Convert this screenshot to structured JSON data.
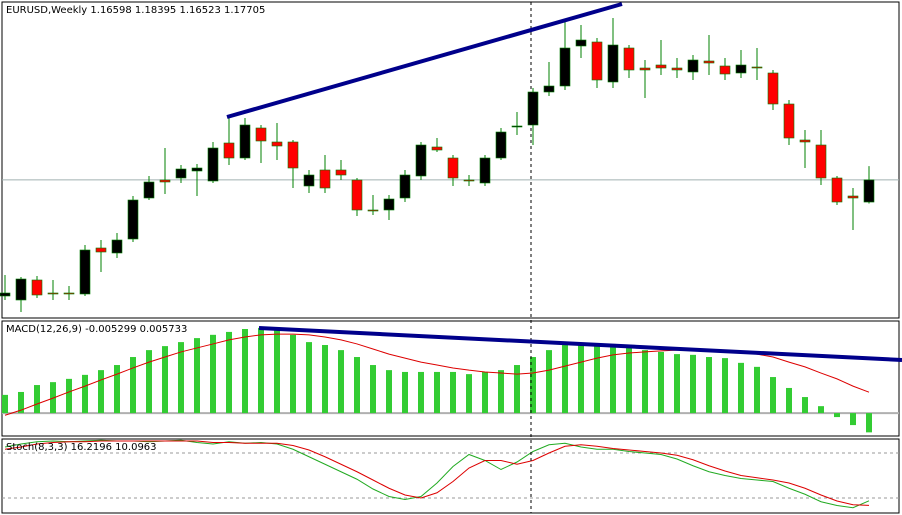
{
  "chart_data": [
    {
      "type": "candlestick",
      "title": "EURUSD,Weekly  1.16598 1.18395 1.16523 1.17705",
      "open": [
        1.119,
        1.117,
        1.127,
        1.1205,
        1.1205,
        1.12,
        1.143,
        1.1405,
        1.1475,
        1.168,
        1.177,
        1.178,
        1.1815,
        1.1765,
        1.1955,
        1.188,
        1.203,
        1.196,
        1.196,
        1.174,
        1.182,
        1.182,
        1.177,
        1.162,
        1.162,
        1.168,
        1.179,
        1.1935,
        1.188,
        1.177,
        1.1755,
        1.188,
        1.2035,
        1.2045,
        1.221,
        1.224,
        1.244,
        1.246,
        1.226,
        1.243,
        1.233,
        1.2345,
        1.233,
        1.231,
        1.2365,
        1.234,
        1.2305,
        1.2335,
        1.2305,
        1.215,
        1.197,
        1.1945,
        1.178,
        1.169,
        1.16598
      ],
      "high": [
        1.1295,
        1.1285,
        1.129,
        1.127,
        1.124,
        1.1445,
        1.147,
        1.1505,
        1.169,
        1.179,
        1.193,
        1.1845,
        1.185,
        1.196,
        1.208,
        1.208,
        1.2045,
        1.2055,
        1.197,
        1.182,
        1.1895,
        1.187,
        1.178,
        1.1695,
        1.1695,
        1.182,
        1.196,
        1.198,
        1.1895,
        1.1795,
        1.1895,
        1.203,
        1.211,
        1.223,
        1.236,
        1.257,
        1.2545,
        1.248,
        1.258,
        1.2445,
        1.237,
        1.247,
        1.238,
        1.2395,
        1.2495,
        1.238,
        1.242,
        1.243,
        1.232,
        1.217,
        1.202,
        1.202,
        1.179,
        1.173,
        1.18395
      ],
      "low": [
        1.117,
        1.111,
        1.118,
        1.117,
        1.117,
        1.119,
        1.131,
        1.138,
        1.146,
        1.167,
        1.17,
        1.1755,
        1.169,
        1.1755,
        1.1845,
        1.187,
        1.1855,
        1.187,
        1.173,
        1.1705,
        1.1705,
        1.177,
        1.159,
        1.1595,
        1.157,
        1.166,
        1.177,
        1.191,
        1.174,
        1.174,
        1.174,
        1.187,
        1.1995,
        1.1945,
        1.219,
        1.222,
        1.238,
        1.223,
        1.223,
        1.228,
        1.218,
        1.2295,
        1.228,
        1.227,
        1.2295,
        1.227,
        1.228,
        1.227,
        1.212,
        1.1945,
        1.183,
        1.1745,
        1.1645,
        1.152,
        1.16523
      ],
      "close": [
        1.1205,
        1.1275,
        1.1195,
        1.12,
        1.12,
        1.142,
        1.141,
        1.147,
        1.167,
        1.176,
        1.176,
        1.1825,
        1.183,
        1.193,
        1.188,
        1.2045,
        1.1965,
        1.194,
        1.183,
        1.1795,
        1.173,
        1.1795,
        1.162,
        1.1615,
        1.1675,
        1.1795,
        1.1945,
        1.192,
        1.178,
        1.1765,
        1.188,
        1.201,
        1.204,
        1.221,
        1.224,
        1.243,
        1.247,
        1.227,
        1.2445,
        1.232,
        1.232,
        1.233,
        1.232,
        1.237,
        1.2355,
        1.23,
        1.2345,
        1.233,
        1.215,
        1.198,
        1.196,
        1.178,
        1.166,
        1.168,
        1.17705
      ],
      "up_color": "#000000",
      "down_color": "#ff0000",
      "wick_color": "#008000",
      "ylim": [
        1.108,
        1.266
      ]
    },
    {
      "type": "macd",
      "title": "MACD(12,26,9) -0.005299 0.005733",
      "series": [
        {
          "color": "#33cc33",
          "values": [
            0.005,
            0.0058,
            0.0077,
            0.0085,
            0.0094,
            0.0105,
            0.0118,
            0.0132,
            0.0154,
            0.0173,
            0.0184,
            0.0195,
            0.0206,
            0.0215,
            0.0223,
            0.0231,
            0.0234,
            0.0228,
            0.0215,
            0.0195,
            0.0187,
            0.0173,
            0.0154,
            0.0132,
            0.0118,
            0.0113,
            0.0113,
            0.0113,
            0.0113,
            0.0107,
            0.0113,
            0.0118,
            0.0132,
            0.0154,
            0.0173,
            0.0187,
            0.019,
            0.0187,
            0.019,
            0.0182,
            0.0173,
            0.0168,
            0.0162,
            0.016,
            0.0154,
            0.0151,
            0.0138,
            0.0127,
            0.0099,
            0.0069,
            0.0044,
            0.0019,
            -0.0011,
            -0.0033,
            -0.005299
          ]
        },
        {
          "color": "#dd0000",
          "values": [
            -0.0006,
            0.0008,
            0.0025,
            0.0041,
            0.0058,
            0.0074,
            0.0091,
            0.0107,
            0.0124,
            0.014,
            0.0154,
            0.0168,
            0.0179,
            0.019,
            0.0201,
            0.0209,
            0.0215,
            0.0217,
            0.0217,
            0.0215,
            0.0209,
            0.0201,
            0.019,
            0.0176,
            0.0162,
            0.0151,
            0.014,
            0.0132,
            0.0124,
            0.0118,
            0.0113,
            0.011,
            0.0107,
            0.011,
            0.0118,
            0.0129,
            0.014,
            0.0151,
            0.016,
            0.0165,
            0.0168,
            0.0171,
            0.0173,
            0.0173,
            0.0173,
            0.0171,
            0.0168,
            0.0162,
            0.0154,
            0.014,
            0.0127,
            0.011,
            0.0094,
            0.0074,
            0.005733
          ]
        }
      ],
      "ylim": [
        -0.0063,
        0.0253
      ]
    },
    {
      "type": "stochastic",
      "title": "Stoch(8,3,3) 16.2196 10.0963",
      "series": [
        {
          "color": "#22aa22",
          "values": [
            88,
            92,
            95,
            96,
            95,
            96,
            97,
            96,
            96,
            95,
            96,
            97,
            94,
            92,
            95,
            93,
            94,
            92,
            85,
            75,
            65,
            55,
            45,
            32,
            22,
            18,
            22,
            40,
            62,
            78,
            70,
            58,
            68,
            82,
            91,
            93,
            88,
            85,
            85,
            82,
            80,
            78,
            72,
            63,
            55,
            50,
            46,
            44,
            42,
            33,
            25,
            15,
            10,
            7,
            16.2196
          ]
        },
        {
          "color": "#dd0000",
          "values": [
            85,
            88,
            92,
            94,
            95,
            95,
            96,
            96,
            96,
            96,
            96,
            96,
            96,
            94,
            94,
            93,
            93,
            93,
            90,
            84,
            75,
            65,
            55,
            44,
            33,
            24,
            20,
            27,
            42,
            60,
            70,
            70,
            65,
            70,
            80,
            89,
            91,
            89,
            86,
            84,
            82,
            80,
            77,
            71,
            63,
            56,
            50,
            47,
            44,
            40,
            33,
            24,
            16,
            11,
            10.0963
          ]
        }
      ],
      "ylim": [
        0,
        100
      ],
      "levels": [
        20,
        80
      ]
    }
  ]
}
